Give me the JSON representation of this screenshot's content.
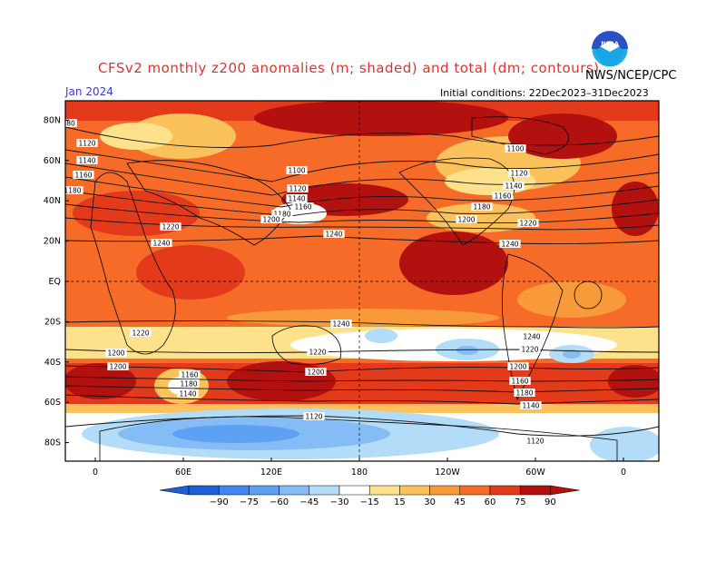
{
  "header": {
    "title": "CFSv2 monthly z200 anomalies (m; shaded) and total (dm; contours)",
    "month": "Jan 2024",
    "agency": "NWS/NCEP/CPC",
    "initial_conditions": "Initial conditions: 22Dec2023–31Dec2023"
  },
  "logo": {
    "name": "noaa-logo",
    "text": "NOAA",
    "color_top": "#2b6fd6",
    "color_bottom": "#19b3e6"
  },
  "axes": {
    "lat_labels": [
      "80N",
      "60N",
      "40N",
      "20N",
      "EQ",
      "20S",
      "40S",
      "60S",
      "80S"
    ],
    "lon_labels": [
      "0",
      "60E",
      "120E",
      "180",
      "120W",
      "60W",
      "0"
    ]
  },
  "colorbar": {
    "ticks": [
      "−90",
      "−75",
      "−60",
      "−45",
      "−30",
      "−15",
      "15",
      "30",
      "45",
      "60",
      "75",
      "90"
    ],
    "colors": [
      "#1c5fd9",
      "#3f86f0",
      "#5ea0f3",
      "#86bcf5",
      "#b2dcf7",
      "#ffffff",
      "#fee28b",
      "#fbc25b",
      "#f99a3a",
      "#f56b27",
      "#e33a1c",
      "#b31010"
    ]
  },
  "contour_labels": [
    {
      "text": "1120"
    },
    {
      "text": "1140"
    },
    {
      "text": "1160"
    },
    {
      "text": "1180"
    },
    {
      "text": "1100"
    },
    {
      "text": "1120"
    },
    {
      "text": "1140"
    },
    {
      "text": "1160"
    },
    {
      "text": "1180"
    },
    {
      "text": "1200"
    },
    {
      "text": "1220"
    },
    {
      "text": "1240"
    },
    {
      "text": "1100"
    },
    {
      "text": "1120"
    },
    {
      "text": "1140"
    },
    {
      "text": "1160"
    },
    {
      "text": "1180"
    },
    {
      "text": "1200"
    },
    {
      "text": "1220"
    },
    {
      "text": "1240"
    },
    {
      "text": "1240"
    },
    {
      "text": "1240"
    },
    {
      "text": "1220"
    },
    {
      "text": "1200"
    },
    {
      "text": "1220"
    },
    {
      "text": "1200"
    },
    {
      "text": "1180"
    },
    {
      "text": "1160"
    },
    {
      "text": "1140"
    },
    {
      "text": "1120"
    },
    {
      "text": "1220"
    },
    {
      "text": "1200"
    },
    {
      "text": "1180"
    },
    {
      "text": "1180"
    },
    {
      "text": "1140"
    },
    {
      "text": "1120"
    },
    {
      "text": "1240"
    },
    {
      "text": "1200"
    },
    {
      "text": "1180"
    },
    {
      "text": "1160"
    },
    {
      "text": "80"
    }
  ]
}
